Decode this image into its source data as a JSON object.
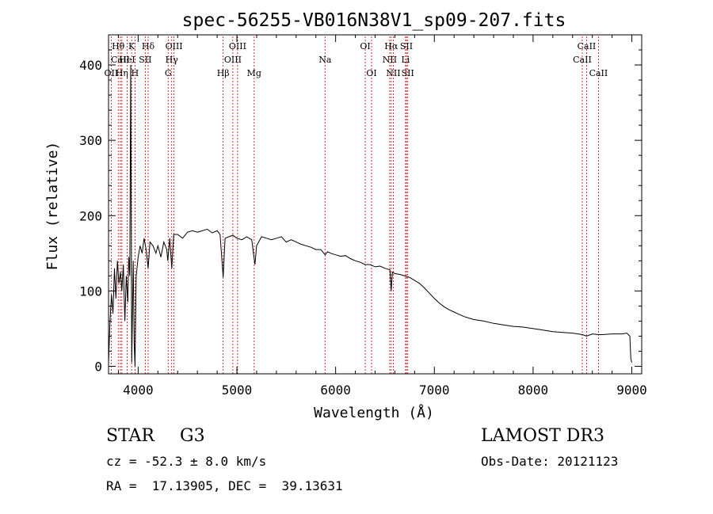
{
  "chart_data": {
    "type": "line",
    "title": "spec-56255-VB016N38V1_sp09-207.fits",
    "xlabel": "Wavelength (Å)",
    "ylabel": "Flux (relative)",
    "xlim": [
      3700,
      9100
    ],
    "ylim": [
      -10,
      440
    ],
    "xticks": [
      {
        "value": 4000,
        "label": "4000"
      },
      {
        "value": 5000,
        "label": "5000"
      },
      {
        "value": 6000,
        "label": "6000"
      },
      {
        "value": 7000,
        "label": "7000"
      },
      {
        "value": 8000,
        "label": "8000"
      },
      {
        "value": 9000,
        "label": "9000"
      }
    ],
    "yticks": [
      {
        "value": 0,
        "label": "0"
      },
      {
        "value": 100,
        "label": "100"
      },
      {
        "value": 200,
        "label": "200"
      },
      {
        "value": 300,
        "label": "300"
      },
      {
        "value": 400,
        "label": "400"
      }
    ],
    "series": [
      {
        "name": "spectrum",
        "color": "#000000",
        "points": [
          [
            3700,
            5
          ],
          [
            3715,
            60
          ],
          [
            3730,
            95
          ],
          [
            3745,
            70
          ],
          [
            3760,
            130
          ],
          [
            3775,
            90
          ],
          [
            3790,
            140
          ],
          [
            3805,
            110
          ],
          [
            3820,
            125
          ],
          [
            3835,
            100
          ],
          [
            3850,
            135
          ],
          [
            3865,
            60
          ],
          [
            3880,
            120
          ],
          [
            3895,
            85
          ],
          [
            3905,
            145
          ],
          [
            3915,
            120
          ],
          [
            3925,
            400
          ],
          [
            3935,
            5
          ],
          [
            3950,
            140
          ],
          [
            3960,
            30
          ],
          [
            3968,
            0
          ],
          [
            3980,
            120
          ],
          [
            4000,
            145
          ],
          [
            4020,
            160
          ],
          [
            4040,
            150
          ],
          [
            4060,
            170
          ],
          [
            4080,
            155
          ],
          [
            4101,
            130
          ],
          [
            4120,
            165
          ],
          [
            4150,
            160
          ],
          [
            4180,
            150
          ],
          [
            4200,
            160
          ],
          [
            4230,
            145
          ],
          [
            4260,
            165
          ],
          [
            4290,
            155
          ],
          [
            4300,
            140
          ],
          [
            4320,
            170
          ],
          [
            4340,
            130
          ],
          [
            4360,
            175
          ],
          [
            4400,
            175
          ],
          [
            4450,
            170
          ],
          [
            4500,
            178
          ],
          [
            4550,
            180
          ],
          [
            4600,
            178
          ],
          [
            4650,
            180
          ],
          [
            4700,
            182
          ],
          [
            4750,
            177
          ],
          [
            4800,
            180
          ],
          [
            4830,
            175
          ],
          [
            4861,
            118
          ],
          [
            4880,
            170
          ],
          [
            4920,
            172
          ],
          [
            4960,
            174
          ],
          [
            5000,
            170
          ],
          [
            5050,
            168
          ],
          [
            5100,
            172
          ],
          [
            5150,
            168
          ],
          [
            5183,
            135
          ],
          [
            5200,
            160
          ],
          [
            5250,
            172
          ],
          [
            5300,
            170
          ],
          [
            5350,
            168
          ],
          [
            5400,
            170
          ],
          [
            5450,
            172
          ],
          [
            5500,
            165
          ],
          [
            5550,
            168
          ],
          [
            5600,
            165
          ],
          [
            5650,
            162
          ],
          [
            5700,
            160
          ],
          [
            5750,
            158
          ],
          [
            5800,
            155
          ],
          [
            5850,
            155
          ],
          [
            5893,
            148
          ],
          [
            5920,
            152
          ],
          [
            5950,
            150
          ],
          [
            6000,
            148
          ],
          [
            6050,
            146
          ],
          [
            6100,
            147
          ],
          [
            6150,
            143
          ],
          [
            6200,
            140
          ],
          [
            6250,
            138
          ],
          [
            6300,
            135
          ],
          [
            6350,
            135
          ],
          [
            6400,
            132
          ],
          [
            6450,
            133
          ],
          [
            6500,
            130
          ],
          [
            6550,
            128
          ],
          [
            6563,
            100
          ],
          [
            6575,
            125
          ],
          [
            6600,
            123
          ],
          [
            6650,
            122
          ],
          [
            6700,
            120
          ],
          [
            6750,
            118
          ],
          [
            6800,
            114
          ],
          [
            6850,
            110
          ],
          [
            6900,
            104
          ],
          [
            6950,
            97
          ],
          [
            7000,
            90
          ],
          [
            7050,
            84
          ],
          [
            7100,
            79
          ],
          [
            7150,
            75
          ],
          [
            7200,
            72
          ],
          [
            7250,
            69
          ],
          [
            7300,
            66
          ],
          [
            7350,
            64
          ],
          [
            7400,
            62
          ],
          [
            7500,
            60
          ],
          [
            7600,
            57
          ],
          [
            7700,
            55
          ],
          [
            7800,
            53
          ],
          [
            7900,
            52
          ],
          [
            8000,
            50
          ],
          [
            8100,
            48
          ],
          [
            8200,
            46
          ],
          [
            8300,
            45
          ],
          [
            8400,
            44
          ],
          [
            8500,
            42
          ],
          [
            8542,
            40
          ],
          [
            8600,
            43
          ],
          [
            8662,
            42
          ],
          [
            8700,
            42
          ],
          [
            8800,
            43
          ],
          [
            8900,
            43
          ],
          [
            8950,
            44
          ],
          [
            8980,
            40
          ],
          [
            8990,
            10
          ],
          [
            9000,
            5
          ]
        ]
      }
    ],
    "line_markers": [
      {
        "label": "Hθ",
        "wavelength": 3798,
        "row": 0
      },
      {
        "label": "CaII",
        "wavelength": 3820,
        "row": 1
      },
      {
        "label": "OII",
        "wavelength": 3727,
        "row": 2
      },
      {
        "label": "Hη",
        "wavelength": 3835,
        "row": 2
      },
      {
        "label": "HeI",
        "wavelength": 3889,
        "row": 1
      },
      {
        "label": "K",
        "wavelength": 3934,
        "row": 0
      },
      {
        "label": "H",
        "wavelength": 3968,
        "row": 2
      },
      {
        "label": "SII",
        "wavelength": 4072,
        "row": 1
      },
      {
        "label": "Hδ",
        "wavelength": 4101,
        "row": 0
      },
      {
        "label": "OIII",
        "wavelength": 4363,
        "row": 0
      },
      {
        "label": "Hγ",
        "wavelength": 4340,
        "row": 1
      },
      {
        "label": "G",
        "wavelength": 4304,
        "row": 2
      },
      {
        "label": "Hβ",
        "wavelength": 4861,
        "row": 2
      },
      {
        "label": "OIII",
        "wavelength": 5007,
        "row": 0
      },
      {
        "label": "OIII",
        "wavelength": 4959,
        "row": 1
      },
      {
        "label": "Mg",
        "wavelength": 5175,
        "row": 2
      },
      {
        "label": "Na",
        "wavelength": 5893,
        "row": 1
      },
      {
        "label": "OI",
        "wavelength": 6300,
        "row": 0
      },
      {
        "label": "OI",
        "wavelength": 6364,
        "row": 2
      },
      {
        "label": "Hα",
        "wavelength": 6563,
        "row": 0
      },
      {
        "label": "NII",
        "wavelength": 6548,
        "row": 1
      },
      {
        "label": "NII",
        "wavelength": 6584,
        "row": 2
      },
      {
        "label": "SII",
        "wavelength": 6717,
        "row": 0
      },
      {
        "label": "Li",
        "wavelength": 6708,
        "row": 1
      },
      {
        "label": "SII",
        "wavelength": 6731,
        "row": 2
      },
      {
        "label": "CaII",
        "wavelength": 8542,
        "row": 0
      },
      {
        "label": "CaII",
        "wavelength": 8498,
        "row": 1
      },
      {
        "label": "CaII",
        "wavelength": 8662,
        "row": 2
      }
    ],
    "marker_color": "#c00000"
  },
  "info": {
    "class_type": "STAR",
    "subclass": "G3",
    "survey": "LAMOST DR3",
    "redshift_line": "cz = -52.3 ± 8.0 km/s",
    "obs_date_line": "Obs-Date: 20121123",
    "coords_line": "RA =  17.13905, DEC =  39.13631"
  }
}
